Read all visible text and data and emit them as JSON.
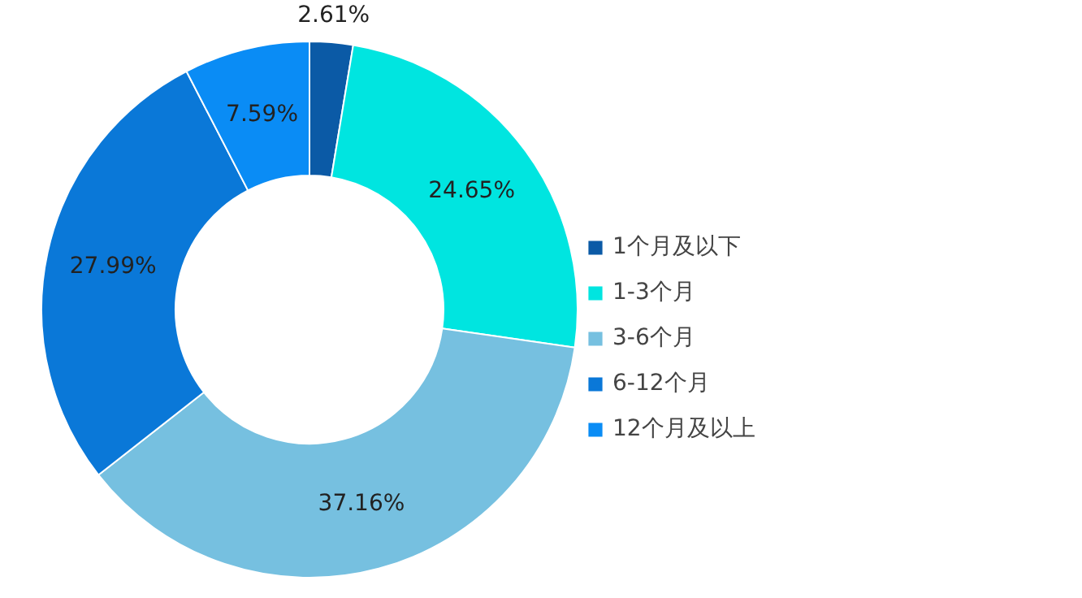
{
  "chart_data": {
    "type": "donut",
    "categories": [
      "1个月及以下",
      "1-3个月",
      "3-6个月",
      "6-12个月",
      "12个月及以上"
    ],
    "values": [
      2.61,
      24.65,
      37.16,
      27.99,
      7.59
    ],
    "colors": [
      "#0b5aa6",
      "#00e5e0",
      "#76c0e0",
      "#0a78d8",
      "#0a8cf5"
    ],
    "value_labels": [
      "2.61%",
      "24.65%",
      "37.16%",
      "27.99%",
      "7.59%"
    ],
    "legend": "right"
  }
}
